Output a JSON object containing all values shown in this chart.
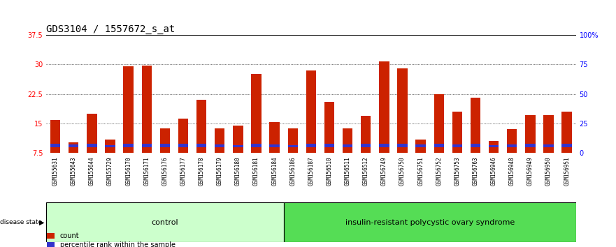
{
  "title": "GDS3104 / 1557672_s_at",
  "samples": [
    "GSM155631",
    "GSM155643",
    "GSM155644",
    "GSM155729",
    "GSM156170",
    "GSM156171",
    "GSM156176",
    "GSM156177",
    "GSM156178",
    "GSM156179",
    "GSM156180",
    "GSM156181",
    "GSM156184",
    "GSM156186",
    "GSM156187",
    "GSM156510",
    "GSM156511",
    "GSM156512",
    "GSM156749",
    "GSM156750",
    "GSM156751",
    "GSM156752",
    "GSM156753",
    "GSM156763",
    "GSM156946",
    "GSM156948",
    "GSM156949",
    "GSM156950",
    "GSM156951"
  ],
  "count_values": [
    15.8,
    10.2,
    17.5,
    11.0,
    29.5,
    29.7,
    13.8,
    16.3,
    21.0,
    13.8,
    14.5,
    27.5,
    15.3,
    13.8,
    28.5,
    20.5,
    13.8,
    17.0,
    30.7,
    29.0,
    11.0,
    22.5,
    18.0,
    21.5,
    10.5,
    13.5,
    17.2,
    17.2,
    18.0
  ],
  "percentile_values": [
    0.8,
    0.7,
    0.8,
    0.5,
    0.8,
    0.8,
    0.8,
    0.8,
    0.8,
    0.7,
    0.6,
    0.8,
    0.7,
    0.5,
    0.8,
    0.8,
    0.7,
    0.8,
    0.8,
    0.8,
    0.7,
    0.8,
    0.7,
    0.8,
    0.6,
    0.7,
    0.8,
    0.7,
    0.8
  ],
  "n_control": 13,
  "n_pcos": 16,
  "group_labels": [
    "control",
    "insulin-resistant polycystic ovary syndrome"
  ],
  "bar_color_count": "#cc2200",
  "bar_color_percentile": "#3333cc",
  "ymin": 7.5,
  "ymax": 37.5,
  "yticks": [
    7.5,
    15.0,
    22.5,
    30.0,
    37.5
  ],
  "ytick_labels": [
    "7.5",
    "15",
    "22.5",
    "30",
    "37.5"
  ],
  "right_yticks": [
    0,
    25,
    50,
    75,
    100
  ],
  "right_ytick_labels": [
    "0",
    "25",
    "50",
    "75",
    "100%"
  ],
  "control_bg": "#ccffcc",
  "pcos_bg": "#55dd55",
  "xlabel_area_bg": "#d0d0d0",
  "title_fontsize": 10,
  "tick_fontsize": 7,
  "label_fontsize": 8,
  "grid_yticks": [
    15.0,
    22.5,
    30.0
  ]
}
